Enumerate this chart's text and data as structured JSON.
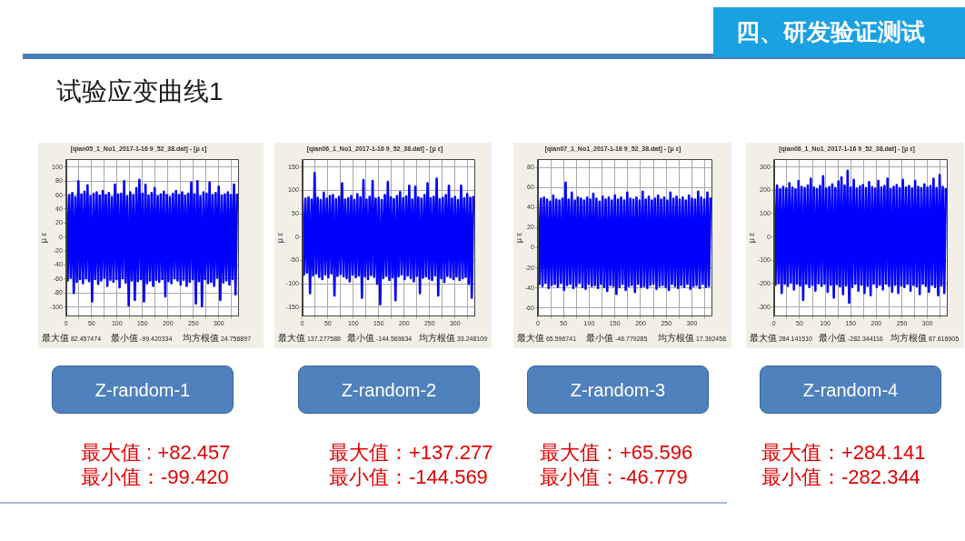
{
  "chart_data": [
    {
      "type": "other",
      "title": "四、研发验证测试",
      "subtitle": "试验应变曲线1"
    },
    {
      "type": "line",
      "title": "[qian05_1_No1_2017-1-16 9_52_38.dat] - [μ ε]",
      "ylabel": "μ ε",
      "color": "#0000ff",
      "grid": true,
      "xlim": [
        0,
        338
      ],
      "xticks": [
        0,
        {
          "value": 25,
          "label": null
        },
        50,
        {
          "value": 75,
          "label": null
        },
        100,
        {
          "value": 125,
          "label": null
        },
        150,
        {
          "value": 175,
          "label": null
        },
        200,
        {
          "value": 225,
          "label": null
        },
        250,
        {
          "value": 275,
          "label": null
        },
        300,
        {
          "value": 325,
          "label": null
        }
      ],
      "ylim": [
        -113,
        111
      ],
      "yticks": [
        -100,
        -80,
        -60,
        -40,
        -20,
        0,
        20,
        40,
        60,
        80,
        100
      ],
      "x": [
        0,
        3,
        6,
        9,
        12,
        15,
        18,
        21,
        24,
        27,
        30,
        33,
        36,
        39,
        42,
        45,
        48,
        51,
        54,
        57,
        60,
        63,
        66,
        69,
        72,
        75,
        78,
        81,
        84,
        87,
        90,
        93,
        96,
        99,
        102,
        105,
        108,
        111,
        114,
        117,
        120,
        123,
        126,
        129,
        132,
        135,
        138,
        141,
        144,
        147,
        150,
        153,
        156,
        159,
        162,
        165,
        168,
        171,
        174,
        177,
        180,
        183,
        186,
        189,
        192,
        195,
        198,
        201,
        204,
        207,
        210,
        213,
        216,
        219,
        222,
        225,
        228,
        231,
        234,
        237,
        240,
        243,
        246,
        249,
        252,
        255,
        258,
        261,
        264,
        267,
        270,
        273,
        276,
        279,
        282,
        285,
        288,
        291,
        294,
        297,
        300,
        303,
        306,
        309,
        312,
        315,
        318,
        321,
        324,
        327,
        330,
        333,
        336
      ],
      "values": [
        58,
        -62,
        60,
        -58,
        63,
        -80,
        57,
        -64,
        80,
        -60,
        61,
        -66,
        65,
        -59,
        74,
        -63,
        58,
        -92,
        62,
        -60,
        64,
        -67,
        59,
        -62,
        66,
        -58,
        60,
        -70,
        63,
        -61,
        57,
        -64,
        75,
        -60,
        61,
        -72,
        62,
        -59,
        80,
        -65,
        58,
        -98,
        64,
        -62,
        60,
        -90,
        70,
        -63,
        82,
        -60,
        62,
        -92,
        75,
        -66,
        59,
        -62,
        63,
        -70,
        70,
        -61,
        58,
        -64,
        61,
        -60,
        65,
        -85,
        60,
        -63,
        57,
        -66,
        62,
        -59,
        66,
        -62,
        60,
        -68,
        64,
        -61,
        59,
        -70,
        62,
        -64,
        78,
        -60,
        61,
        -95,
        80,
        -63,
        58,
        -99,
        64,
        -60,
        62,
        -66,
        78,
        -64,
        60,
        -70,
        63,
        -58,
        72,
        -90,
        59,
        -65,
        61,
        -62,
        64,
        -68,
        60,
        -60,
        75,
        -82,
        62
      ],
      "annotations": [
        "最大值 82.457474",
        "最小值 -99.420334",
        "均方根值 24.756897",
        "Z-random-1",
        "最大值 : +82.457",
        "最小值：-99.420"
      ]
    },
    {
      "type": "line",
      "title": "[qian06_1_No1_2017-1-16 9_52_38.dat] - [μ ε]",
      "ylabel": "μ ε",
      "color": "#0000ff",
      "grid": true,
      "xlim": [
        0,
        338
      ],
      "xticks": [
        0,
        {
          "value": 25,
          "label": null
        },
        50,
        {
          "value": 75,
          "label": null
        },
        100,
        {
          "value": 125,
          "label": null
        },
        150,
        {
          "value": 175,
          "label": null
        },
        200,
        {
          "value": 225,
          "label": null
        },
        250,
        {
          "value": 275,
          "label": null
        },
        300,
        {
          "value": 325,
          "label": null
        }
      ],
      "ylim": [
        -169,
        166
      ],
      "yticks": [
        -150,
        -100,
        -50,
        0,
        50,
        100,
        150
      ],
      "x": [
        0,
        3,
        6,
        9,
        12,
        15,
        18,
        21,
        24,
        27,
        30,
        33,
        36,
        39,
        42,
        45,
        48,
        51,
        54,
        57,
        60,
        63,
        66,
        69,
        72,
        75,
        78,
        81,
        84,
        87,
        90,
        93,
        96,
        99,
        102,
        105,
        108,
        111,
        114,
        117,
        120,
        123,
        126,
        129,
        132,
        135,
        138,
        141,
        144,
        147,
        150,
        153,
        156,
        159,
        162,
        165,
        168,
        171,
        174,
        177,
        180,
        183,
        186,
        189,
        192,
        195,
        198,
        201,
        204,
        207,
        210,
        213,
        216,
        219,
        222,
        225,
        228,
        231,
        234,
        237,
        240,
        243,
        246,
        249,
        252,
        255,
        258,
        261,
        264,
        267,
        270,
        273,
        276,
        279,
        282,
        285,
        288,
        291,
        294,
        297,
        300,
        303,
        306,
        309,
        312,
        315,
        318,
        321,
        324,
        327,
        330,
        333,
        336
      ],
      "values": [
        78,
        -80,
        82,
        -76,
        85,
        -120,
        80,
        -82,
        137,
        -78,
        84,
        -85,
        79,
        -90,
        95,
        -80,
        82,
        -86,
        88,
        -78,
        90,
        -125,
        81,
        -83,
        86,
        -79,
        115,
        -84,
        80,
        -88,
        83,
        -95,
        88,
        -80,
        79,
        -86,
        92,
        -82,
        85,
        -130,
        122,
        -84,
        80,
        -90,
        86,
        -81,
        120,
        -85,
        82,
        -100,
        84,
        -144,
        79,
        -88,
        90,
        -83,
        118,
        -92,
        85,
        -86,
        81,
        -135,
        88,
        -84,
        96,
        -80,
        83,
        -90,
        87,
        -82,
        110,
        -88,
        80,
        -95,
        108,
        -83,
        85,
        -120,
        82,
        -87,
        90,
        -84,
        115,
        -89,
        83,
        -92,
        86,
        -82,
        125,
        -125,
        81,
        -88,
        84,
        -96,
        90,
        -83,
        110,
        -86,
        82,
        -90,
        86,
        -84,
        79,
        -92,
        110,
        -88,
        83,
        -85,
        92,
        -100,
        84,
        -130,
        88
      ],
      "annotations": [
        "最大值 137.277588",
        "最小值 -144.569634",
        "均方根值 33.248109",
        "Z-random-2",
        "最大值：+137.277",
        "最小值：-144.569"
      ]
    },
    {
      "type": "line",
      "title": "[qian07_1_No1_2017-1-16 9_52_38.dat] - [μ ε]",
      "ylabel": "μ ε",
      "color": "#0000ff",
      "grid": true,
      "xlim": [
        0,
        338
      ],
      "xticks": [
        0,
        {
          "value": 25,
          "label": null
        },
        50,
        {
          "value": 75,
          "label": null
        },
        100,
        {
          "value": 125,
          "label": null
        },
        150,
        {
          "value": 175,
          "label": null
        },
        200,
        {
          "value": 225,
          "label": null
        },
        250,
        {
          "value": 275,
          "label": null
        },
        300,
        {
          "value": 325,
          "label": null
        }
      ],
      "ylim": [
        -68,
        88
      ],
      "yticks": [
        -60,
        -40,
        -20,
        0,
        20,
        40,
        60,
        80
      ],
      "x": [
        0,
        3,
        6,
        9,
        12,
        15,
        18,
        21,
        24,
        27,
        30,
        33,
        36,
        39,
        42,
        45,
        48,
        51,
        54,
        57,
        60,
        63,
        66,
        69,
        72,
        75,
        78,
        81,
        84,
        87,
        90,
        93,
        96,
        99,
        102,
        105,
        108,
        111,
        114,
        117,
        120,
        123,
        126,
        129,
        132,
        135,
        138,
        141,
        144,
        147,
        150,
        153,
        156,
        159,
        162,
        165,
        168,
        171,
        174,
        177,
        180,
        183,
        186,
        189,
        192,
        195,
        198,
        201,
        204,
        207,
        210,
        213,
        216,
        219,
        222,
        225,
        228,
        231,
        234,
        237,
        240,
        243,
        246,
        249,
        252,
        255,
        258,
        261,
        264,
        267,
        270,
        273,
        276,
        279,
        282,
        285,
        288,
        291,
        294,
        297,
        300,
        303,
        306,
        309,
        312,
        315,
        318,
        321,
        324,
        327,
        330,
        333,
        336
      ],
      "values": [
        47,
        -36,
        49,
        -38,
        50,
        -35,
        48,
        -40,
        46,
        -37,
        52,
        -36,
        48,
        -39,
        47,
        -35,
        49,
        -42,
        65,
        -37,
        48,
        -36,
        55,
        -40,
        47,
        -38,
        50,
        -35,
        49,
        -39,
        47,
        -41,
        50,
        -36,
        48,
        -38,
        54,
        -37,
        49,
        -40,
        46,
        -36,
        51,
        -39,
        48,
        -43,
        50,
        -37,
        47,
        -38,
        52,
        -46,
        48,
        -39,
        50,
        -36,
        47,
        -42,
        55,
        -38,
        49,
        -37,
        48,
        -44,
        50,
        -36,
        47,
        -39,
        56,
        -38,
        48,
        -40,
        51,
        -37,
        47,
        -36,
        49,
        -41,
        52,
        -38,
        48,
        -37,
        50,
        -39,
        47,
        -42,
        55,
        -36,
        49,
        -38,
        51,
        -40,
        48,
        -37,
        50,
        -39,
        47,
        -36,
        52,
        -41,
        49,
        -38,
        48,
        -37,
        56,
        -40,
        50,
        -36,
        48,
        -39,
        55,
        -38,
        50
      ],
      "annotations": [
        "最大值 65.596741",
        "最小值 -46.779285",
        "均方根值 17.392458",
        "Z-random-3",
        "最大值：+65.596",
        "最小值：-46.779"
      ]
    },
    {
      "type": "line",
      "title": "[qian08_1_No1_2017-1-16 9_52_38.dat] - [μ ε]",
      "ylabel": "μ ε",
      "color": "#0000ff",
      "grid": true,
      "xlim": [
        0,
        338
      ],
      "xticks": [
        0,
        {
          "value": 25,
          "label": null
        },
        50,
        {
          "value": 75,
          "label": null
        },
        100,
        {
          "value": 125,
          "label": null
        },
        150,
        {
          "value": 175,
          "label": null
        },
        200,
        {
          "value": 225,
          "label": null
        },
        250,
        {
          "value": 275,
          "label": null
        },
        300,
        {
          "value": 325,
          "label": null
        }
      ],
      "ylim": [
        -339,
        332
      ],
      "yticks": [
        -300,
        -200,
        -100,
        0,
        100,
        200,
        300
      ],
      "x": [
        0,
        3,
        6,
        9,
        12,
        15,
        18,
        21,
        24,
        27,
        30,
        33,
        36,
        39,
        42,
        45,
        48,
        51,
        54,
        57,
        60,
        63,
        66,
        69,
        72,
        75,
        78,
        81,
        84,
        87,
        90,
        93,
        96,
        99,
        102,
        105,
        108,
        111,
        114,
        117,
        120,
        123,
        126,
        129,
        132,
        135,
        138,
        141,
        144,
        147,
        150,
        153,
        156,
        159,
        162,
        165,
        168,
        171,
        174,
        177,
        180,
        183,
        186,
        189,
        192,
        195,
        198,
        201,
        204,
        207,
        210,
        213,
        216,
        219,
        222,
        225,
        228,
        231,
        234,
        237,
        240,
        243,
        246,
        249,
        252,
        255,
        258,
        261,
        264,
        267,
        270,
        273,
        276,
        279,
        282,
        285,
        288,
        291,
        294,
        297,
        300,
        303,
        306,
        309,
        312,
        315,
        318,
        321,
        324,
        327,
        330,
        333,
        336
      ],
      "values": [
        210,
        -205,
        220,
        -198,
        205,
        -240,
        215,
        -200,
        208,
        -210,
        230,
        -195,
        212,
        -225,
        205,
        -200,
        240,
        -208,
        215,
        -270,
        210,
        -200,
        220,
        -215,
        250,
        -205,
        212,
        -230,
        206,
        -198,
        218,
        -210,
        260,
        -200,
        208,
        -235,
        214,
        -205,
        225,
        -260,
        210,
        -202,
        238,
        -212,
        255,
        -245,
        220,
        -208,
        284,
        -282,
        212,
        -215,
        245,
        -200,
        208,
        -230,
        216,
        -205,
        222,
        -240,
        210,
        -210,
        235,
        -250,
        214,
        -200,
        208,
        -215,
        240,
        -205,
        212,
        -225,
        218,
        -200,
        250,
        -210,
        206,
        -235,
        215,
        -205,
        222,
        -240,
        210,
        -208,
        245,
        -215,
        212,
        -200,
        218,
        -230,
        208,
        -205,
        240,
        -212,
        215,
        -245,
        210,
        -200,
        225,
        -210,
        212,
        -235,
        218,
        -205,
        250,
        -215,
        210,
        -250,
        265,
        -208,
        215,
        -240,
        210
      ],
      "annotations": [
        "最大值 284.141510",
        "最小值 -282.344116",
        "均方根值 87.616905",
        "Z-random-4",
        "最大值：+284.141",
        "最小值：-282.344"
      ]
    }
  ]
}
